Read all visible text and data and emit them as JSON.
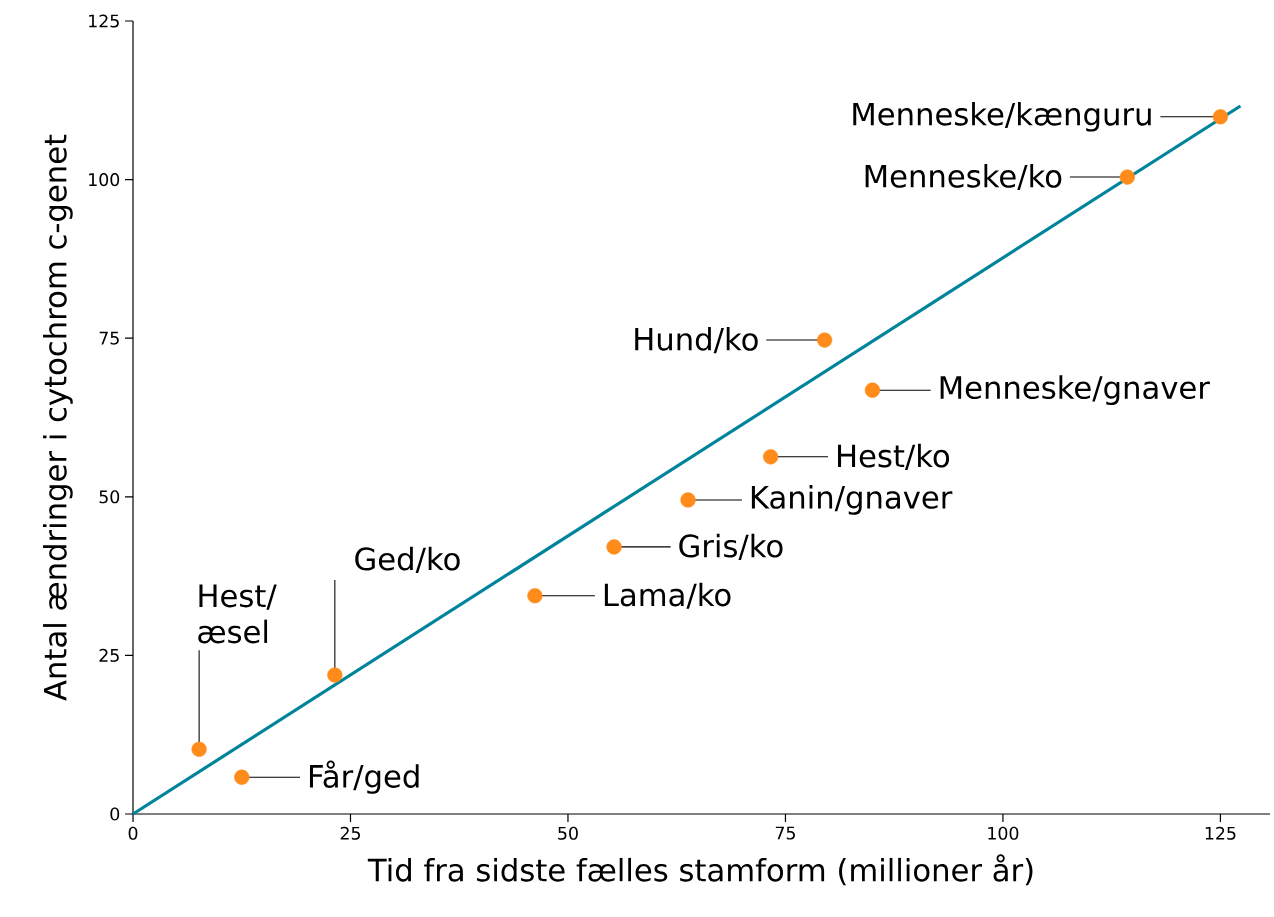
{
  "chart_data": {
    "type": "scatter",
    "xlabel": "Tid fra sidste fælles stamform (millioner år)",
    "ylabel": "Antal ændringer i cytochrom c-genet",
    "xlim": [
      0,
      130.7
    ],
    "ylim": [
      0,
      125
    ],
    "xticks": [
      0,
      25,
      50,
      75,
      100,
      125
    ],
    "yticks": [
      0,
      25,
      50,
      75,
      100,
      125
    ],
    "series": [
      {
        "type": "line",
        "color": "#00849b",
        "x": [
          0,
          127.3
        ],
        "values": [
          0,
          111.6
        ]
      },
      {
        "marker": "circle",
        "color": "#ff8c1a",
        "x": [
          7.6,
          12.5,
          23.2,
          46.2,
          55.3,
          63.8,
          73.3,
          79.5,
          85.0,
          114.3,
          125.0
        ],
        "values": [
          10.2,
          5.8,
          21.9,
          34.4,
          42.1,
          49.5,
          56.3,
          74.7,
          66.8,
          100.4,
          109.9
        ]
      }
    ],
    "annotations": [
      {
        "text": "Hest/ æsel",
        "x": 7.6,
        "y": 10.2
      },
      {
        "text": "Får/ged",
        "x": 12.5,
        "y": 5.8
      },
      {
        "text": "Ged/ko",
        "x": 23.2,
        "y": 21.9
      },
      {
        "text": "Lama/ko",
        "x": 46.2,
        "y": 34.4
      },
      {
        "text": "Gris/ko",
        "x": 55.3,
        "y": 42.1
      },
      {
        "text": "Kanin/gnaver",
        "x": 63.8,
        "y": 49.5
      },
      {
        "text": "Hest/ko",
        "x": 73.3,
        "y": 56.3
      },
      {
        "text": "Hund/ko",
        "x": 79.5,
        "y": 74.7
      },
      {
        "text": "Menneske/gnaver",
        "x": 85.0,
        "y": 66.8
      },
      {
        "text": "Menneske/ko",
        "x": 114.3,
        "y": 100.4
      },
      {
        "text": "Menneske/kænguru",
        "x": 125.0,
        "y": 109.9
      }
    ]
  }
}
